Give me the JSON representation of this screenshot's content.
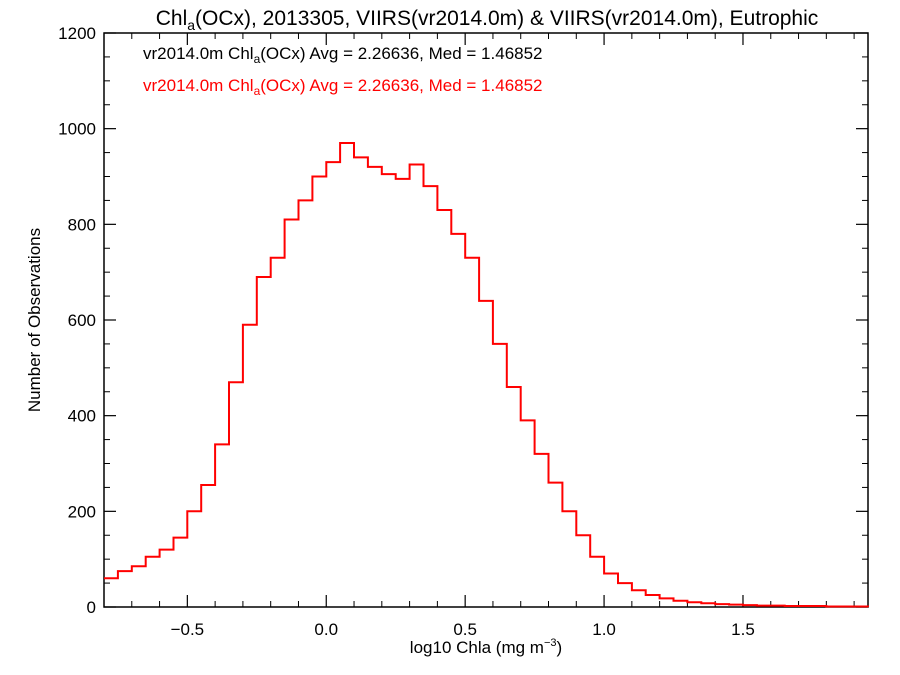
{
  "chart_data": {
    "type": "line",
    "title": {
      "prefix": "Chl",
      "sub": "a",
      "suffix": "(OCx), 2013305, VIIRS(vr2014.0m) & VIIRS(vr2014.0m), Eutrophic"
    },
    "xlabel": {
      "prefix": "log10 Chla (mg m",
      "sup": "−3",
      "suffix": ")"
    },
    "ylabel": "Number of Observations",
    "xlim": [
      -0.8,
      1.95
    ],
    "ylim": [
      0,
      1200
    ],
    "xticks": [
      -0.5,
      0.0,
      0.5,
      1.0,
      1.5
    ],
    "xtick_labels": [
      "−0.5",
      "0.0",
      "0.5",
      "1.0",
      "1.5"
    ],
    "yticks": [
      0,
      200,
      400,
      600,
      800,
      1000,
      1200
    ],
    "ytick_labels": [
      "0",
      "200",
      "400",
      "600",
      "800",
      "1000",
      "1200"
    ],
    "grid": false,
    "legend": [
      {
        "prefix": "vr2014.0m Chl",
        "sub": "a",
        "suffix": "(OCx) Avg = 2.26636, Med = 1.46852",
        "color": "#000000"
      },
      {
        "prefix": "vr2014.0m Chl",
        "sub": "a",
        "suffix": "(OCx) Avg = 2.26636, Med = 1.46852",
        "color": "#ff0000"
      }
    ],
    "series": [
      {
        "name": "vr2014.0m",
        "color": "#ff0000",
        "step": "hist",
        "x": [
          -0.8,
          -0.75,
          -0.7,
          -0.65,
          -0.6,
          -0.55,
          -0.5,
          -0.45,
          -0.4,
          -0.35,
          -0.3,
          -0.25,
          -0.2,
          -0.15,
          -0.1,
          -0.05,
          0.0,
          0.05,
          0.1,
          0.15,
          0.2,
          0.25,
          0.3,
          0.35,
          0.4,
          0.45,
          0.5,
          0.55,
          0.6,
          0.65,
          0.7,
          0.75,
          0.8,
          0.85,
          0.9,
          0.95,
          1.0,
          1.05,
          1.1,
          1.15,
          1.2,
          1.25,
          1.3,
          1.35,
          1.4,
          1.45,
          1.5,
          1.55,
          1.6,
          1.65,
          1.7,
          1.75,
          1.8,
          1.85,
          1.9,
          1.95
        ],
        "y": [
          60,
          75,
          85,
          105,
          120,
          145,
          200,
          255,
          340,
          470,
          590,
          690,
          730,
          810,
          850,
          900,
          930,
          970,
          940,
          920,
          905,
          895,
          925,
          880,
          830,
          780,
          730,
          640,
          550,
          460,
          390,
          320,
          260,
          200,
          150,
          105,
          70,
          50,
          35,
          25,
          18,
          13,
          10,
          8,
          6,
          5,
          4,
          3,
          3,
          2,
          2,
          2,
          1,
          1,
          1,
          0
        ]
      }
    ]
  }
}
